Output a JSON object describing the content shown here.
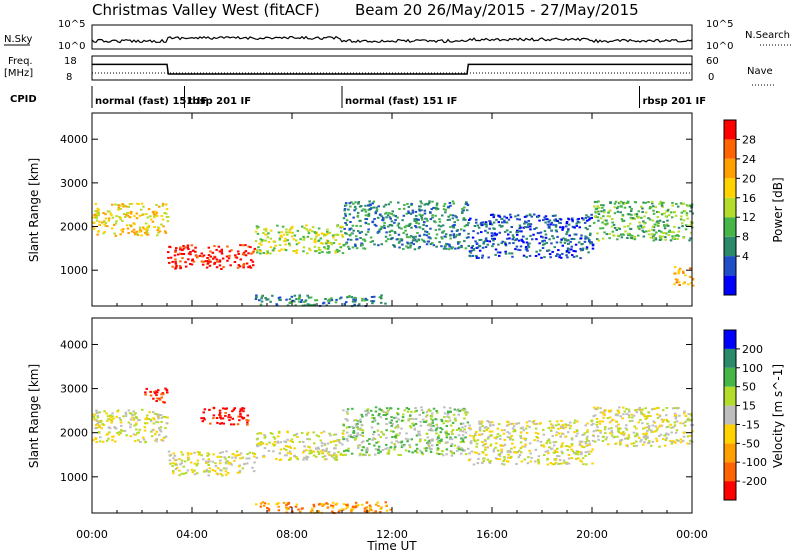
{
  "header": {
    "title": "Christmas Valley West (fitACF)",
    "beam_info": "Beam 20 26/May/2015 - 27/May/2015"
  },
  "strip_labels": {
    "nsky": "N.Sky",
    "nsky_ticks": [
      "10^5",
      "10^0"
    ],
    "nsearch": "N.Search",
    "nsearch_ticks": [
      "10^5",
      "10^0"
    ],
    "freq": "Freq.",
    "freq_unit": "[MHz]",
    "freq_ticks": [
      "18",
      "8"
    ],
    "nave": "Nave",
    "nave_ticks": [
      "60",
      "0"
    ],
    "cpid": "CPID"
  },
  "cpid_segments": [
    {
      "label": "normal (fast) 151 IF",
      "start_h": 0.0,
      "end_h": 3.7
    },
    {
      "label": "rbsp 201 IF",
      "start_h": 3.7,
      "end_h": 10.0
    },
    {
      "label": "normal (fast) 151 IF",
      "start_h": 10.0,
      "end_h": 21.9
    },
    {
      "label": "rbsp 201 IF",
      "start_h": 21.9,
      "end_h": 24.0
    }
  ],
  "frequency_trace": [
    {
      "h": 0.0,
      "mhz": 14.5
    },
    {
      "h": 3.0,
      "mhz": 14.5
    },
    {
      "h": 3.05,
      "mhz": 10.5
    },
    {
      "h": 15.0,
      "mhz": 10.5
    },
    {
      "h": 15.05,
      "mhz": 14.5
    },
    {
      "h": 24.0,
      "mhz": 14.5
    }
  ],
  "x_axis": {
    "label": "Time UT",
    "ticks": [
      "00:00",
      "04:00",
      "08:00",
      "12:00",
      "16:00",
      "20:00",
      "00:00"
    ]
  },
  "chart_data": [
    {
      "type": "heatmap",
      "panel": "power",
      "ylabel": "Slant Range [km]",
      "yticks": [
        1000,
        2000,
        3000,
        4000
      ],
      "ylim": [
        180,
        4600
      ],
      "xlim_hours": [
        0,
        24
      ],
      "colorbar": {
        "title": "Power [dB]",
        "labels": [
          "28",
          "24",
          "20",
          "16",
          "12",
          "8",
          "4"
        ],
        "colors": [
          "#0000ff",
          "#1e4fc8",
          "#2a8a6a",
          "#46b648",
          "#b4dc2a",
          "#ffd200",
          "#ffa000",
          "#ff6400",
          "#ff0000"
        ]
      },
      "regions": [
        {
          "start_h": 0.0,
          "end_h": 3.0,
          "range_low_km": 1800,
          "range_high_km": 2550,
          "level": 5
        },
        {
          "start_h": 3.0,
          "end_h": 6.5,
          "range_low_km": 1050,
          "range_high_km": 1600,
          "level": 8
        },
        {
          "start_h": 6.5,
          "end_h": 10.0,
          "range_low_km": 1400,
          "range_high_km": 2050,
          "level": 4
        },
        {
          "start_h": 10.0,
          "end_h": 15.0,
          "range_low_km": 1500,
          "range_high_km": 2600,
          "level": 2
        },
        {
          "start_h": 15.0,
          "end_h": 20.0,
          "range_low_km": 1300,
          "range_high_km": 2300,
          "level": 1
        },
        {
          "start_h": 20.0,
          "end_h": 24.0,
          "range_low_km": 1700,
          "range_high_km": 2600,
          "level": 3
        },
        {
          "start_h": 23.2,
          "end_h": 24.0,
          "range_low_km": 650,
          "range_high_km": 1100,
          "level": 6
        },
        {
          "start_h": 6.5,
          "end_h": 12.0,
          "range_low_km": 200,
          "range_high_km": 450,
          "level": 2
        }
      ]
    },
    {
      "type": "heatmap",
      "panel": "velocity",
      "ylabel": "Slant Range [km]",
      "yticks": [
        1000,
        2000,
        3000,
        4000
      ],
      "ylim": [
        180,
        4600
      ],
      "xlim_hours": [
        0,
        24
      ],
      "colorbar": {
        "title": "Velocity [m s^-1]",
        "labels": [
          "200",
          "100",
          "50",
          "15",
          "-15",
          "-50",
          "-100",
          "-200"
        ],
        "colors": [
          "#ff0000",
          "#ff6400",
          "#ffa000",
          "#ffd200",
          "#bebebe",
          "#b4dc2a",
          "#46b648",
          "#2a8a6a",
          "#0000ff"
        ]
      },
      "regions": [
        {
          "start_h": 0.0,
          "end_h": 3.0,
          "range_low_km": 1800,
          "range_high_km": 2550,
          "level": 4
        },
        {
          "start_h": 2.0,
          "end_h": 3.0,
          "range_low_km": 2700,
          "range_high_km": 3050,
          "level": 0
        },
        {
          "start_h": 3.0,
          "end_h": 6.5,
          "range_low_km": 1050,
          "range_high_km": 1600,
          "level": 4
        },
        {
          "start_h": 4.3,
          "end_h": 6.2,
          "range_low_km": 2200,
          "range_high_km": 2600,
          "level": 0
        },
        {
          "start_h": 6.5,
          "end_h": 10.0,
          "range_low_km": 1400,
          "range_high_km": 2050,
          "level": 4
        },
        {
          "start_h": 10.0,
          "end_h": 15.0,
          "range_low_km": 1500,
          "range_high_km": 2600,
          "level": 5
        },
        {
          "start_h": 15.0,
          "end_h": 20.0,
          "range_low_km": 1300,
          "range_high_km": 2300,
          "level": 4
        },
        {
          "start_h": 20.0,
          "end_h": 24.0,
          "range_low_km": 1700,
          "range_high_km": 2600,
          "level": 4
        },
        {
          "start_h": 6.5,
          "end_h": 12.0,
          "range_low_km": 200,
          "range_high_km": 450,
          "level": 2
        }
      ]
    }
  ]
}
